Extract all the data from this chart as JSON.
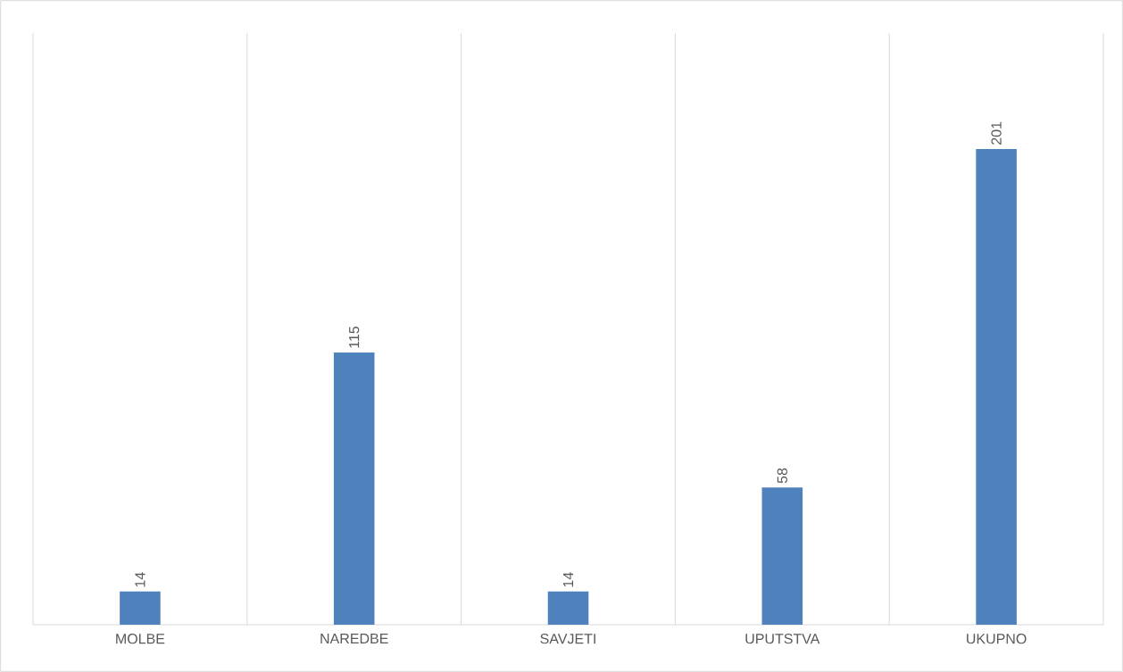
{
  "chart_data": {
    "type": "bar",
    "categories": [
      "MOLBE",
      "NAREDBE",
      "SAVJETI",
      "UPUTSTVA",
      "UKUPNO"
    ],
    "values": [
      14,
      115,
      14,
      58,
      201
    ],
    "color": "#4f81bd",
    "ylim": [
      0,
      250
    ],
    "grid": "x",
    "data_labels": true
  }
}
